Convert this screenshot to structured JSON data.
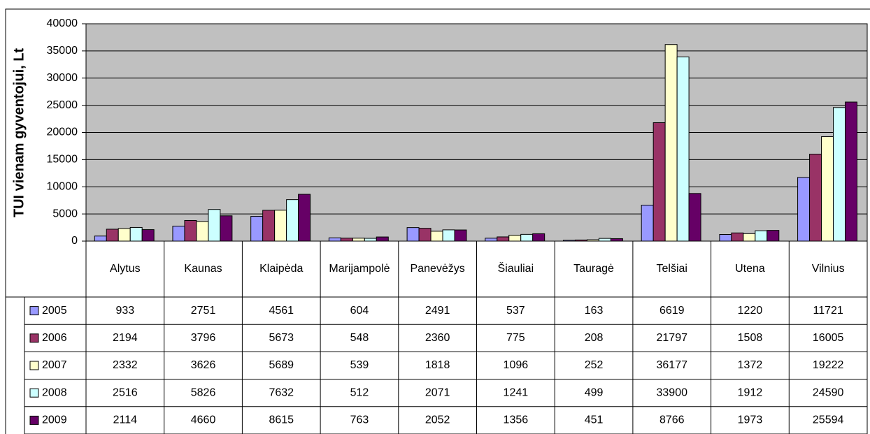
{
  "chart_data": {
    "type": "bar",
    "y_label": "TUI vienam gyventojui, Lt",
    "categories": [
      "Alytus",
      "Kaunas",
      "Klaipėda",
      "Marijampolė",
      "Panevėžys",
      "Šiauliai",
      "Tauragė",
      "Telšiai",
      "Utena",
      "Vilnius"
    ],
    "series": [
      {
        "name": "2005",
        "color": "#9999ff",
        "values": [
          933,
          2751,
          4561,
          604,
          2491,
          537,
          163,
          6619,
          1220,
          11721
        ]
      },
      {
        "name": "2006",
        "color": "#993366",
        "values": [
          2194,
          3796,
          5673,
          548,
          2360,
          775,
          208,
          21797,
          1508,
          16005
        ]
      },
      {
        "name": "2007",
        "color": "#ffffcc",
        "values": [
          2332,
          3626,
          5689,
          539,
          1818,
          1096,
          252,
          36177,
          1372,
          19222
        ]
      },
      {
        "name": "2008",
        "color": "#ccffff",
        "values": [
          2516,
          5826,
          7632,
          512,
          2071,
          1241,
          499,
          33900,
          1912,
          24590
        ]
      },
      {
        "name": "2009",
        "color": "#660066",
        "values": [
          2114,
          4660,
          8615,
          763,
          2052,
          1356,
          451,
          8766,
          1973,
          25594
        ]
      }
    ],
    "ylim": [
      0,
      40000
    ],
    "yticks": [
      0,
      5000,
      10000,
      15000,
      20000,
      25000,
      30000,
      35000,
      40000
    ],
    "grid": true,
    "plot_background": "#c0c0c0",
    "data_table": true
  }
}
